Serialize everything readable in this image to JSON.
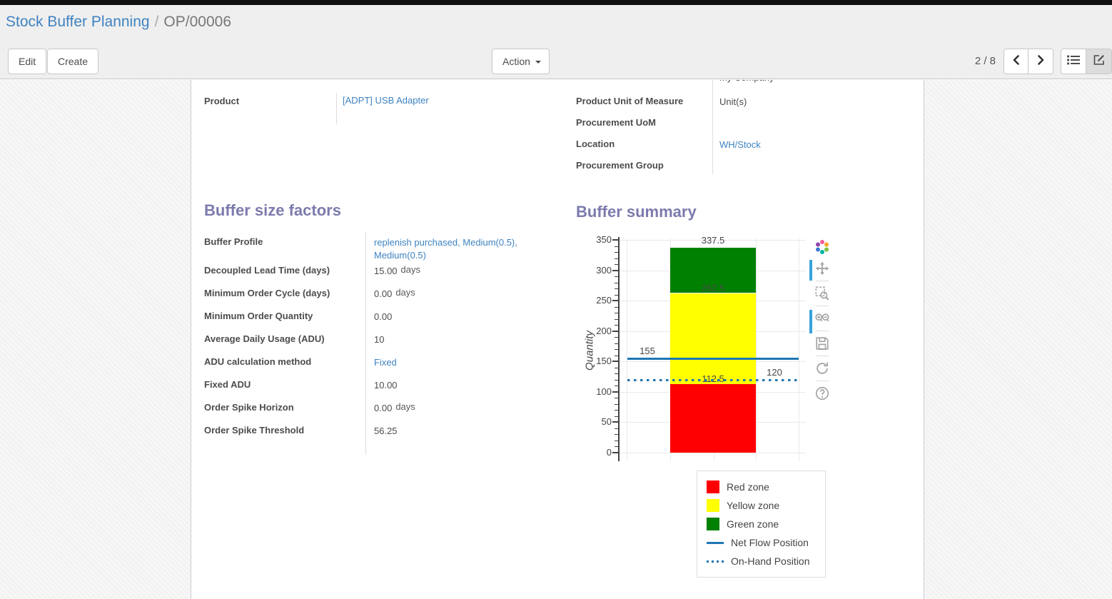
{
  "breadcrumb": {
    "parent": "Stock Buffer Planning",
    "separator": "/",
    "current": "OP/00006"
  },
  "control_panel": {
    "edit": "Edit",
    "create": "Create",
    "action": "Action",
    "pager": "2 / 8"
  },
  "sheet": {
    "clipped_company_value": "My Company",
    "product_field": {
      "label": "Product",
      "value": "[ADPT] USB Adapter",
      "link": true
    },
    "right_fields": [
      {
        "label": "Product Unit of Measure",
        "value": "Unit(s)",
        "link": false
      },
      {
        "label": "Procurement UoM",
        "value": "",
        "link": false
      },
      {
        "label": "Location",
        "value": "WH/Stock",
        "link": true
      },
      {
        "label": "Procurement Group",
        "value": "",
        "link": false
      }
    ],
    "buffer_factors": {
      "title": "Buffer size factors",
      "rows": [
        {
          "label": "Buffer Profile",
          "value": "replenish purchased, Medium(0.5), Medium(0.5)",
          "link": true,
          "suffix": ""
        },
        {
          "label": "Decoupled Lead Time (days)",
          "value": "15.00",
          "link": false,
          "suffix": "days"
        },
        {
          "label": "Minimum Order Cycle (days)",
          "value": "0.00",
          "link": false,
          "suffix": "days"
        },
        {
          "label": "Minimum Order Quantity",
          "value": "0.00",
          "link": false,
          "suffix": ""
        },
        {
          "label": "Average Daily Usage (ADU)",
          "value": "10",
          "link": false,
          "suffix": ""
        },
        {
          "label": "ADU calculation method",
          "value": "Fixed",
          "link": true,
          "suffix": ""
        },
        {
          "label": "Fixed ADU",
          "value": "10.00",
          "link": false,
          "suffix": ""
        },
        {
          "label": "Order Spike Horizon",
          "value": "0.00",
          "link": false,
          "suffix": "days"
        },
        {
          "label": "Order Spike Threshold",
          "value": "56.25",
          "link": false,
          "suffix": ""
        }
      ]
    },
    "buffer_summary": {
      "title": "Buffer summary"
    }
  },
  "chart_data": {
    "type": "bar",
    "title": "Buffer summary",
    "xlabel": "",
    "ylabel": "Quantity",
    "ylim": [
      0,
      350
    ],
    "ytick_step": 50,
    "yminor_step": 10,
    "grid": true,
    "series": [
      {
        "name": "Red zone",
        "color": "#ff0000",
        "value": 112.5
      },
      {
        "name": "Yellow zone",
        "color": "#ffff00",
        "value": 150
      },
      {
        "name": "Green zone",
        "color": "#008000",
        "value": 75
      }
    ],
    "stack_boundaries": [
      112.5,
      262.5,
      337.5
    ],
    "bar_top_label": "337.5",
    "zone_boundary_labels": [
      {
        "text": "262.5",
        "value": 262.5,
        "color": "#4d4d4d"
      },
      {
        "text": "112.5",
        "value": 112.5,
        "color": "#444444"
      }
    ],
    "reference_lines": [
      {
        "name": "Net Flow Position",
        "value": 155,
        "label": "155",
        "style": "solid",
        "color": "#1f77b4",
        "label_side": "left"
      },
      {
        "name": "On-Hand Position",
        "value": 120,
        "label": "120",
        "style": "dotted",
        "color": "#1f77b4",
        "label_side": "right"
      }
    ],
    "legend": {
      "position": "below-right",
      "items": [
        {
          "label": "Red zone",
          "swatch": "square",
          "color": "#ff0000"
        },
        {
          "label": "Yellow zone",
          "swatch": "square",
          "color": "#ffff00"
        },
        {
          "label": "Green zone",
          "swatch": "square",
          "color": "#008000"
        },
        {
          "label": "Net Flow Position",
          "swatch": "line",
          "color": "#1f77b4"
        },
        {
          "label": "On-Hand Position",
          "swatch": "dotted-line",
          "color": "#1f77b4"
        }
      ]
    }
  },
  "modebar": {
    "icons": [
      {
        "name": "plotly-logo"
      },
      {
        "name": "pan-icon"
      },
      {
        "name": "box-zoom-icon"
      },
      {
        "name": "zoom-in-out-icon"
      },
      {
        "name": "save-icon"
      },
      {
        "name": "reset-axes-icon"
      },
      {
        "name": "help-icon"
      }
    ]
  },
  "colors": {
    "heading": "#7c7bad",
    "link": "#3f83c1",
    "net_flow_blue": "#1f77b4",
    "red_zone": "#ff0000",
    "yellow_zone": "#ffff00",
    "green_zone": "#008000"
  }
}
